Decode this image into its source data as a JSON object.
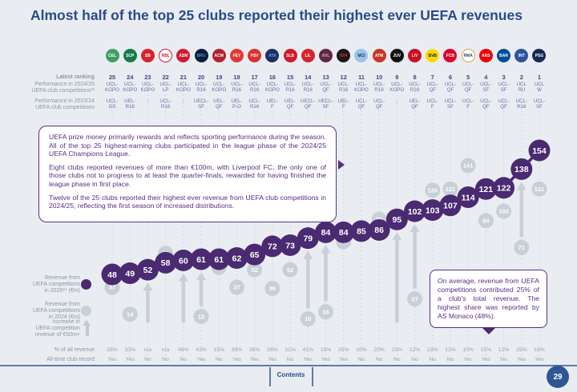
{
  "title": "Almost half of the top 25 clubs reported their highest ever UEFA revenues",
  "rows": {
    "latest_ranking": "Latest ranking",
    "perf_2024_25": "Performance in 2024/25\nUEFA club competitions²³",
    "perf_2023_24": "Performance in 2023/24\nUEFA club competitions",
    "pct_of_all_revenue": "% of all revenue",
    "all_time_club_record": "All-time club record"
  },
  "legend": {
    "rev_2025": "Revenue from\nUEFA competitions\nin 2025²⁴ (€m)",
    "rev_2024": "Revenue from\nUEFA competitions\nin 2024 (€m)",
    "increase": "Increase in\nUEFA competition\nrevenue of €50m+"
  },
  "infobox": {
    "p1": "UEFA prize money primarily rewards and reflects sporting performance during the season. All of the top 25 highest-earning clubs participated in the league phase of the 2024/25 UEFA Champions League.",
    "p2": "Eight clubs reported revenues of more than €100m, with Liverpool FC, the only one of those clubs not to progress to at least the quarter-finals, rewarded for having finished the league phase in first place.",
    "p3": "Twelve of the 25 clubs reported their highest ever revenue from UEFA club competitions in 2024/25, reflecting the first season of increased distributions."
  },
  "callout": {
    "text": "On average, revenue from UEFA competitions contributed 25% of a club's total revenue. The highest share was reported by AS Monaco (48%)."
  },
  "footer": {
    "contents_label": "Contents",
    "page_number": "29"
  },
  "colors": {
    "purple": "#4a2a70",
    "gray_dot": "#c9cfd7",
    "accent_blue": "#2b4a8b"
  },
  "clubs": [
    {
      "rank": 25,
      "club": "Celtic FC",
      "code": "CEL",
      "bg": "#3f9e63",
      "fg": "#ffffff",
      "perf_2024_25": "UCL-KOPO",
      "perf_2023_24": "UCL-GS",
      "pct_of_all_revenue": "28%",
      "all_time_record": "Yes"
    },
    {
      "rank": 24,
      "club": "Sporting CP",
      "code": "SCP",
      "bg": "#177b4b",
      "fg": "#ffffff",
      "perf_2024_25": "UCL-KOPO",
      "perf_2023_24": "UEL-R16",
      "pct_of_all_revenue": "33%",
      "all_time_record": "Yes"
    },
    {
      "rank": 23,
      "club": "Stade Brestois 29",
      "code": "SB",
      "bg": "#d7232e",
      "fg": "#ffffff",
      "perf_2024_25": "UCL-KOPO",
      "perf_2023_24": "-",
      "pct_of_all_revenue": "n/a",
      "all_time_record": "No"
    },
    {
      "rank": 22,
      "club": "RB Leipzig",
      "code": "RBL",
      "bg": "#ffffff",
      "fg": "#d8122e",
      "border": "#d8122e",
      "perf_2024_25": "UCL-LP",
      "perf_2023_24": "UCL-R16",
      "pct_of_all_revenue": "n/a",
      "all_time_record": "No"
    },
    {
      "rank": 21,
      "club": "AS Monaco",
      "code": "ASM",
      "bg": "#d31931",
      "fg": "#ffffff",
      "perf_2024_25": "UCL-KOPO",
      "perf_2023_24": "-",
      "pct_of_all_revenue": "48%",
      "all_time_record": "No"
    },
    {
      "rank": 20,
      "club": "Club Brugge",
      "code": "BRU",
      "bg": "#0b1d3a",
      "fg": "#4a90d9",
      "perf_2024_25": "UCL-R16",
      "perf_2023_24": "UECL-SF",
      "pct_of_all_revenue": "43%",
      "all_time_record": "Yes"
    },
    {
      "rank": 19,
      "club": "AC Milan",
      "code": "ACM",
      "bg": "#b3212b",
      "fg": "#ffffff",
      "perf_2024_25": "UCL-KOPO",
      "perf_2023_24": "UEL-QF",
      "pct_of_all_revenue": "15%",
      "all_time_record": "No"
    },
    {
      "rank": 18,
      "club": "Feyenoord",
      "code": "FEY",
      "bg": "#e03a2f",
      "fg": "#ffffff",
      "perf_2024_25": "UCL-R16",
      "perf_2023_24": "UEL-P-O",
      "pct_of_all_revenue": "39%",
      "all_time_record": "Yes"
    },
    {
      "rank": 17,
      "club": "PSV Eindhoven",
      "code": "PSV",
      "bg": "#d8342e",
      "fg": "#ffffff",
      "perf_2024_25": "UCL-R16",
      "perf_2023_24": "UCL-R16",
      "pct_of_all_revenue": "38%",
      "all_time_record": "Yes"
    },
    {
      "rank": 16,
      "club": "Atalanta BC",
      "code": "ATA",
      "bg": "#1c2f66",
      "fg": "#58a6dd",
      "perf_2024_25": "UCL-KOPO",
      "perf_2023_24": "UEL-F",
      "pct_of_all_revenue": "36%",
      "all_time_record": "Yes"
    },
    {
      "rank": 15,
      "club": "SL Benfica",
      "code": "SLB",
      "bg": "#d11a2d",
      "fg": "#ffffff",
      "perf_2024_25": "UCL-R16",
      "perf_2023_24": "UEL-QF",
      "pct_of_all_revenue": "31%",
      "all_time_record": "No"
    },
    {
      "rank": 14,
      "club": "LOSC Lille",
      "code": "LIL",
      "bg": "#d6252e",
      "fg": "#ffffff",
      "perf_2024_25": "UCL-R16",
      "perf_2023_24": "UECL-QF",
      "pct_of_all_revenue": "41%",
      "all_time_record": "Yes"
    },
    {
      "rank": 13,
      "club": "Aston Villa FC",
      "code": "AVL",
      "bg": "#67253e",
      "fg": "#93c5e8",
      "perf_2024_25": "UCL-QF",
      "perf_2023_24": "UECL-SF",
      "pct_of_all_revenue": "19%",
      "all_time_record": "Yes"
    },
    {
      "rank": 12,
      "club": "Bayer 04 Leverkusen",
      "code": "B04",
      "bg": "#1a1a1a",
      "fg": "#e32219",
      "perf_2024_25": "UCL-R16",
      "perf_2023_24": "UEL-F",
      "pct_of_all_revenue": "25%",
      "all_time_record": "Yes"
    },
    {
      "rank": 11,
      "club": "Manchester City FC",
      "code": "MCI",
      "bg": "#98c5e9",
      "fg": "#1c2c5b",
      "perf_2024_25": "UCL-KOPO",
      "perf_2023_24": "UCL-QF",
      "pct_of_all_revenue": "10%",
      "all_time_record": "No"
    },
    {
      "rank": 10,
      "club": "Atlético de Madrid",
      "code": "ATM",
      "bg": "#cb3524",
      "fg": "#ffffff",
      "perf_2024_25": "UCL-R16",
      "perf_2023_24": "UCL-QF",
      "pct_of_all_revenue": "20%",
      "all_time_record": "No"
    },
    {
      "rank": 9,
      "club": "Juventus FC",
      "code": "JUV",
      "bg": "#111111",
      "fg": "#ffffff",
      "perf_2024_25": "UCL-KOPO",
      "perf_2023_24": "-",
      "pct_of_all_revenue": "23%",
      "all_time_record": "No"
    },
    {
      "rank": 8,
      "club": "Liverpool FC",
      "code": "LIV",
      "bg": "#c8102e",
      "fg": "#f6eb61",
      "perf_2024_25": "UCL-R16",
      "perf_2023_24": "UEL-QF",
      "pct_of_all_revenue": "12%",
      "all_time_record": "No"
    },
    {
      "rank": 7,
      "club": "Borussia Dortmund",
      "code": "BVB",
      "bg": "#ffd900",
      "fg": "#1a1a1a",
      "perf_2024_25": "UCL-QF",
      "perf_2023_24": "UCL-F",
      "pct_of_all_revenue": "19%",
      "all_time_record": "No"
    },
    {
      "rank": 6,
      "club": "FC Bayern München",
      "code": "FCB",
      "bg": "#dc052d",
      "fg": "#ffffff",
      "perf_2024_25": "UCL-QF",
      "perf_2023_24": "UCL-SF",
      "pct_of_all_revenue": "12%",
      "all_time_record": "No"
    },
    {
      "rank": 5,
      "club": "Real Madrid CF",
      "code": "RMA",
      "bg": "#fefefe",
      "fg": "#2a4b8d",
      "border": "#d4af37",
      "perf_2024_25": "UCL-QF",
      "perf_2023_24": "UCL-F",
      "pct_of_all_revenue": "10%",
      "all_time_record": "No"
    },
    {
      "rank": 4,
      "club": "Arsenal FC",
      "code": "ARS",
      "bg": "#ef0107",
      "fg": "#ffffff",
      "perf_2024_25": "UCL-SF",
      "perf_2023_24": "UCL-QF",
      "pct_of_all_revenue": "15%",
      "all_time_record": "Yes"
    },
    {
      "rank": 3,
      "club": "FC Barcelona",
      "code": "BAR",
      "bg": "#004d98",
      "fg": "#ffffff",
      "perf_2024_25": "UCL-SF",
      "perf_2023_24": "UCL-QF",
      "pct_of_all_revenue": "12%",
      "all_time_record": "No"
    },
    {
      "rank": 2,
      "club": "FC Internazionale Milano",
      "code": "INT",
      "bg": "#2d53a0",
      "fg": "#ffffff",
      "perf_2024_25": "UCL RU",
      "perf_2023_24": "UCL-R16",
      "pct_of_all_revenue": "25%",
      "all_time_record": "Yes"
    },
    {
      "rank": 1,
      "club": "Paris Saint-Germain",
      "code": "PSG",
      "bg": "#152a57",
      "fg": "#ffffff",
      "perf_2024_25": "UCL W",
      "perf_2023_24": "UCL-SF",
      "pct_of_all_revenue": "18%",
      "all_time_record": "Yes"
    }
  ],
  "chart_data": {
    "type": "scatter",
    "title": "Almost half of the top 25 clubs reported their highest ever UEFA revenues",
    "x_axis": "Clubs ranked 25 (left) to 1 (right) by latest UEFA ranking",
    "categories": [
      "Celtic FC",
      "Sporting CP",
      "Stade Brestois 29",
      "RB Leipzig",
      "AS Monaco",
      "Club Brugge",
      "AC Milan",
      "Feyenoord",
      "PSV Eindhoven",
      "Atalanta BC",
      "SL Benfica",
      "LOSC Lille",
      "Aston Villa FC",
      "Bayer 04 Leverkusen",
      "Manchester City FC",
      "Atlético de Madrid",
      "Juventus FC",
      "Liverpool FC",
      "Borussia Dortmund",
      "FC Bayern München",
      "Real Madrid CF",
      "Arsenal FC",
      "FC Barcelona",
      "FC Internazionale Milano",
      "Paris Saint-Germain"
    ],
    "series": [
      {
        "name": "Revenue from UEFA competitions in 2025 (€m)",
        "color": "#4a2a70",
        "values": [
          48,
          49,
          52,
          58,
          60,
          61,
          61,
          62,
          65,
          72,
          73,
          79,
          84,
          84,
          85,
          86,
          95,
          102,
          103,
          107,
          114,
          121,
          122,
          138,
          154
        ]
      },
      {
        "name": "Revenue from UEFA competitions in 2024 (€m)",
        "color": "#c9cfd7",
        "values": [
          37,
          14,
          null,
          66,
          null,
          12,
          54,
          37,
          52,
          36,
          52,
          10,
          16,
          76,
          null,
          95,
          null,
          27,
          120,
          121,
          141,
          94,
          102,
          71,
          121
        ]
      }
    ],
    "increase_arrow_ranks": [
      23,
      21,
      20,
      14,
      13,
      9,
      8,
      2
    ],
    "ylim": [
      0,
      160
    ],
    "grid": "vertical-dashed",
    "legend_position": "left"
  }
}
